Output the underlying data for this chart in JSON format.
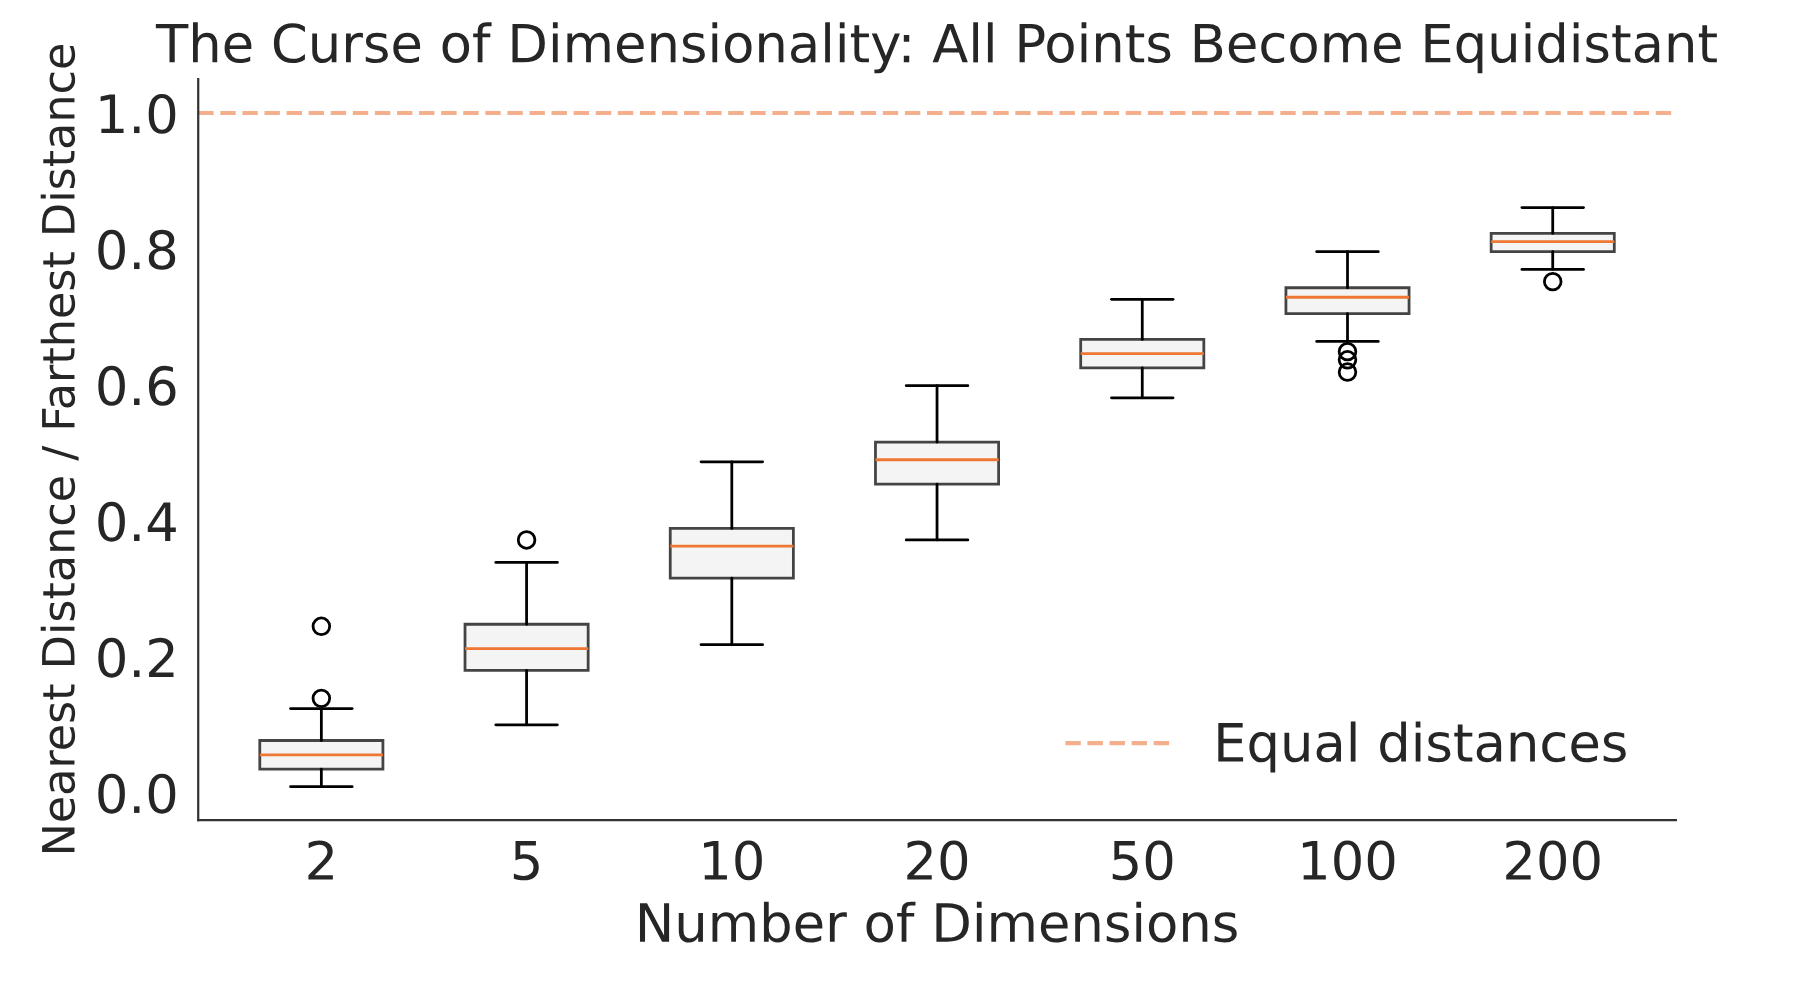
{
  "chart_data": {
    "type": "box",
    "title": "The Curse of Dimensionality: All Points Become Equidistant",
    "xlabel": "Number of Dimensions",
    "ylabel": "Nearest Distance / Farthest Distance",
    "categories": [
      "2",
      "5",
      "10",
      "20",
      "50",
      "100",
      "200"
    ],
    "boxes": [
      {
        "low": 0.009,
        "q1": 0.035,
        "median": 0.056,
        "q3": 0.077,
        "high": 0.124,
        "outliers": [
          0.139,
          0.245
        ]
      },
      {
        "low": 0.1,
        "q1": 0.18,
        "median": 0.212,
        "q3": 0.248,
        "high": 0.339,
        "outliers": [
          0.372
        ]
      },
      {
        "low": 0.218,
        "q1": 0.316,
        "median": 0.363,
        "q3": 0.389,
        "high": 0.487
      },
      {
        "low": 0.372,
        "q1": 0.454,
        "median": 0.49,
        "q3": 0.516,
        "high": 0.599
      },
      {
        "low": 0.581,
        "q1": 0.625,
        "median": 0.646,
        "q3": 0.667,
        "high": 0.726
      },
      {
        "low": 0.664,
        "q1": 0.705,
        "median": 0.729,
        "q3": 0.743,
        "high": 0.796,
        "outliers": [
          0.649,
          0.637,
          0.619
        ]
      },
      {
        "low": 0.77,
        "q1": 0.796,
        "median": 0.811,
        "q3": 0.823,
        "high": 0.861,
        "outliers": [
          0.752
        ]
      }
    ],
    "color": "#f4f4f4",
    "ylim": [
      -0.04,
      1.05
    ],
    "yticks": [
      {
        "value": 0,
        "label": "0.0"
      },
      0.2,
      0.4,
      0.6,
      0.8,
      {
        "value": 1,
        "label": "1.0"
      }
    ],
    "ref_lines": [
      {
        "axis": "y",
        "value": 1.0,
        "label": "Equal distances",
        "color": "#f4b08c",
        "line_style": "dashed"
      }
    ],
    "legend": "bottom right",
    "grid": false
  }
}
